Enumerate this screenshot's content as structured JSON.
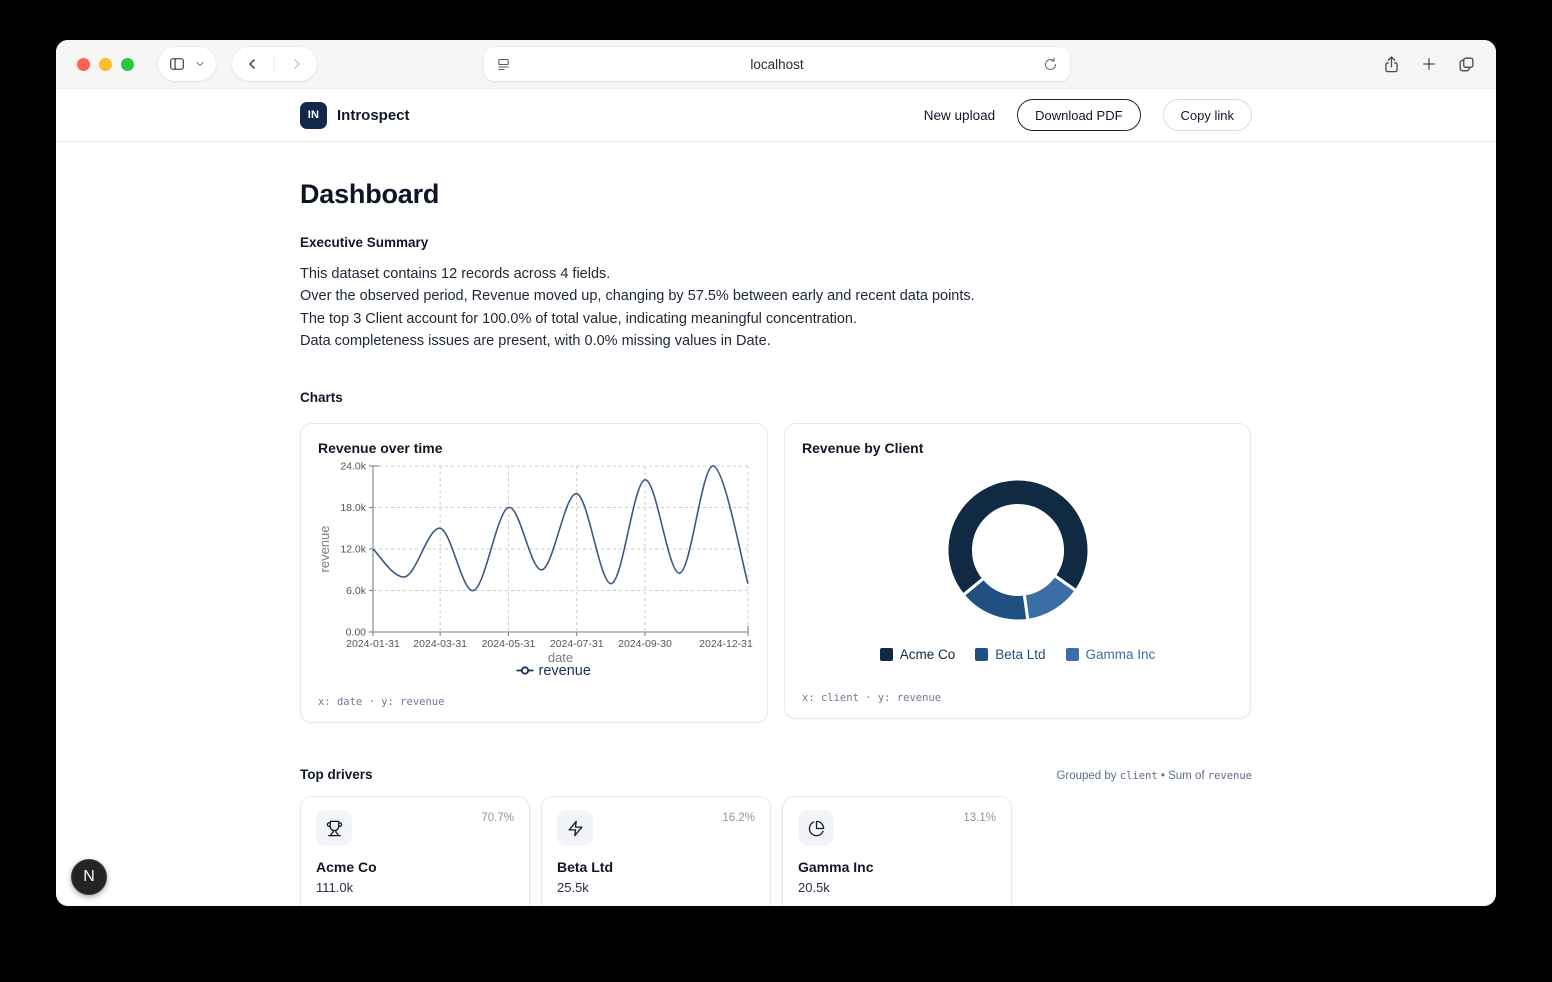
{
  "browser": {
    "url": "localhost",
    "traffic_lights": [
      "#ff5f57",
      "#febc2e",
      "#28c840"
    ]
  },
  "header": {
    "logo_text": "IN",
    "app_name": "Introspect",
    "actions": {
      "new_upload": "New upload",
      "download_pdf": "Download PDF",
      "copy_link": "Copy link"
    }
  },
  "page": {
    "title": "Dashboard",
    "executive_summary": {
      "heading": "Executive Summary",
      "lines": [
        "This dataset contains 12 records across 4 fields.",
        "Over the observed period, Revenue moved up, changing by 57.5% between early and recent data points.",
        "The top 3 Client account for 100.0% of total value, indicating meaningful concentration.",
        "Data completeness issues are present, with 0.0% missing values in Date."
      ]
    },
    "charts_heading": "Charts"
  },
  "chart_data": [
    {
      "type": "line",
      "title": "Revenue over time",
      "x": [
        "2024-01-31",
        "2024-02-29",
        "2024-03-31",
        "2024-04-30",
        "2024-05-31",
        "2024-06-30",
        "2024-07-31",
        "2024-08-31",
        "2024-09-30",
        "2024-10-31",
        "2024-11-30",
        "2024-12-31"
      ],
      "series": [
        {
          "name": "revenue",
          "values": [
            12000,
            8000,
            15000,
            6000,
            18000,
            9000,
            20000,
            7000,
            22000,
            8500,
            24000,
            7000
          ]
        }
      ],
      "xlabel": "date",
      "ylabel": "revenue",
      "ylim": [
        0,
        24000
      ],
      "yticks": [
        "0.00",
        "6.0k",
        "12.0k",
        "18.0k",
        "24.0k"
      ],
      "xticks": [
        "2024-01-31",
        "2024-03-31",
        "2024-05-31",
        "2024-07-31",
        "2024-09-30",
        "2024-12-31"
      ],
      "grid": true,
      "legend_position": "bottom",
      "line_color": "#3a5a86",
      "footnote": "x: date · y: revenue"
    },
    {
      "type": "pie",
      "subtype": "donut",
      "title": "Revenue by Client",
      "categories": [
        "Acme Co",
        "Beta Ltd",
        "Gamma Inc"
      ],
      "values": [
        111000,
        25500,
        20500
      ],
      "percents": [
        70.7,
        16.2,
        13.1
      ],
      "colors": [
        "#102a43",
        "#205080",
        "#3a6ea5"
      ],
      "legend_position": "bottom",
      "footnote": "x: client · y: revenue"
    }
  ],
  "top_drivers": {
    "heading": "Top drivers",
    "caption": {
      "prefix": "Grouped by ",
      "group_field": "client",
      "separator": " • Sum of ",
      "value_field": "revenue"
    },
    "bar_color": "#141c2a",
    "items": [
      {
        "name": "Acme Co",
        "value": "111.0k",
        "percent": "70.7%",
        "percent_value": 70.7,
        "icon": "trophy"
      },
      {
        "name": "Beta Ltd",
        "value": "25.5k",
        "percent": "16.2%",
        "percent_value": 16.2,
        "icon": "zap"
      },
      {
        "name": "Gamma Inc",
        "value": "20.5k",
        "percent": "13.1%",
        "percent_value": 13.1,
        "icon": "pie-chart"
      }
    ]
  },
  "dev_badge": "N"
}
